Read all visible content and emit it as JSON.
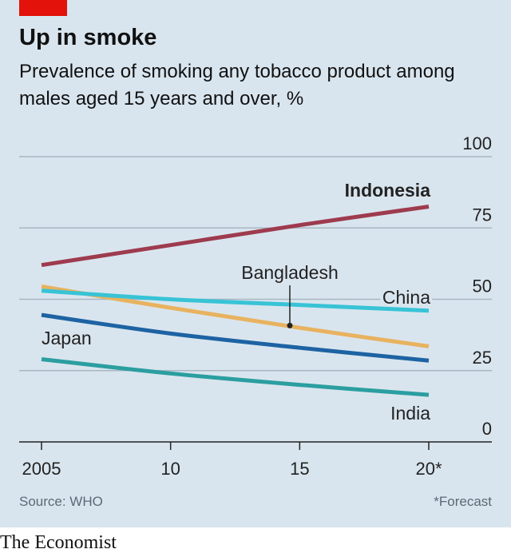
{
  "header": {
    "title": "Up in smoke",
    "subtitle": "Prevalence of smoking any tobacco product among males aged 15 years and over, %"
  },
  "footer": {
    "source": "Source: WHO",
    "footnote": "*Forecast",
    "brand": "The Economist"
  },
  "colors": {
    "panel": "#d9e5ee",
    "accent": "#e3120b",
    "Indonesia": "#9e3b4e",
    "Bangladesh": "#e8b25f",
    "China": "#38c3d6",
    "Japan": "#1d63a3",
    "India": "#2b9ea0"
  },
  "chart_data": {
    "type": "line",
    "x": [
      2005,
      2010,
      2015,
      2020
    ],
    "xtick_labels": [
      "2005",
      "10",
      "15",
      "20*"
    ],
    "ylim": [
      0,
      100
    ],
    "yticks": [
      0,
      25,
      50,
      75,
      100
    ],
    "ytick_side": "right",
    "grid": true,
    "series": [
      {
        "name": "Indonesia",
        "values": [
          62,
          69,
          76,
          82.5
        ]
      },
      {
        "name": "Bangladesh",
        "values": [
          54.5,
          47,
          40,
          33.5
        ]
      },
      {
        "name": "China",
        "values": [
          53,
          50,
          48,
          46
        ]
      },
      {
        "name": "Japan",
        "values": [
          44.5,
          38,
          33,
          28.5
        ]
      },
      {
        "name": "India",
        "values": [
          29,
          24,
          20,
          16.5
        ]
      }
    ]
  }
}
